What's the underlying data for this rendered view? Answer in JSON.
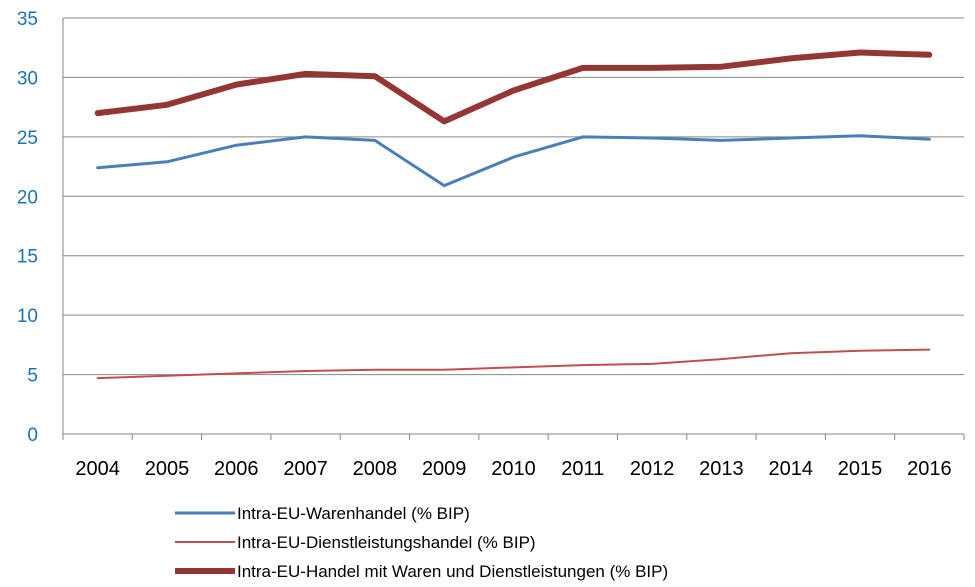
{
  "chart_data": {
    "type": "line",
    "title": "",
    "xlabel": "",
    "ylabel": "",
    "categories": [
      "2004",
      "2005",
      "2006",
      "2007",
      "2008",
      "2009",
      "2010",
      "2011",
      "2012",
      "2013",
      "2014",
      "2015",
      "2016"
    ],
    "ylim": [
      0,
      35
    ],
    "yticks": [
      0,
      5,
      10,
      15,
      20,
      25,
      30,
      35
    ],
    "grid": true,
    "legend_position": "bottom",
    "tick_color": "#1f6fb5",
    "series": [
      {
        "name": "Intra-EU-Warenhandel (% BIP)",
        "color": "#4a7ebb",
        "values": [
          22.4,
          22.9,
          24.3,
          25.0,
          24.7,
          20.9,
          23.3,
          25.0,
          24.9,
          24.7,
          24.9,
          25.1,
          24.8
        ]
      },
      {
        "name": "Intra-EU-Dienstleistungshandel (% BIP)",
        "color": "#c0504d",
        "values": [
          4.7,
          4.9,
          5.1,
          5.3,
          5.4,
          5.4,
          5.6,
          5.8,
          5.9,
          6.3,
          6.8,
          7.0,
          7.1
        ]
      },
      {
        "name": "Intra-EU-Handel mit Waren und Dienstleistungen (% BIP)",
        "color": "#943634",
        "values": [
          27.0,
          27.7,
          29.4,
          30.3,
          30.1,
          26.3,
          28.9,
          30.8,
          30.8,
          30.9,
          31.6,
          32.1,
          31.9
        ]
      }
    ]
  }
}
